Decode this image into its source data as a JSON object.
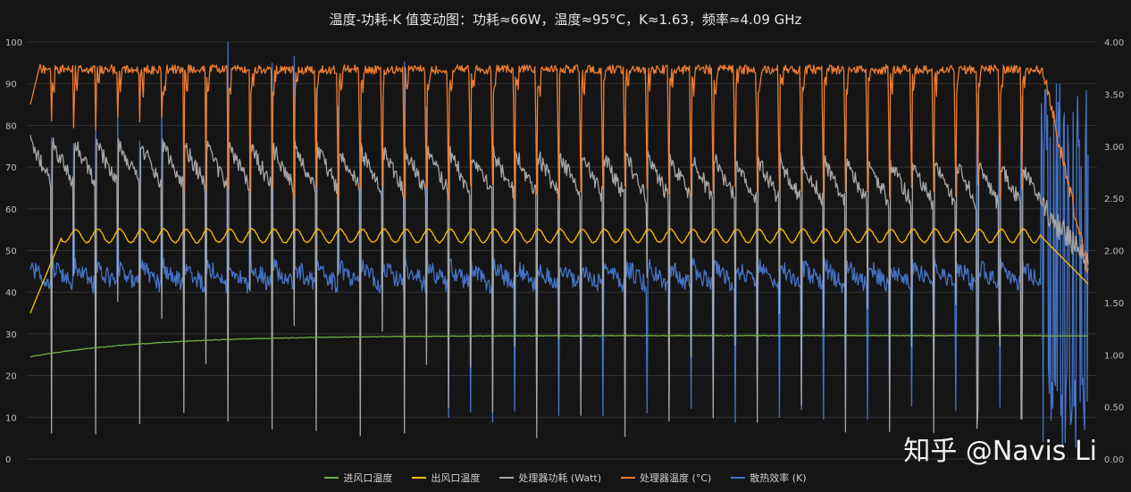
{
  "chart_data": {
    "type": "line",
    "title": "温度-功耗-K 值变动图：功耗≈66W，温度≈95°C，K≈1.63，频率≈4.09 GHz",
    "left_axis": {
      "ylim": [
        0,
        100
      ],
      "ticks": [
        "0",
        "10",
        "20",
        "30",
        "40",
        "50",
        "60",
        "70",
        "80",
        "90",
        "100"
      ]
    },
    "right_axis": {
      "ylim": [
        0,
        4
      ],
      "ticks": [
        "0.00",
        "0.50",
        "1.00",
        "1.50",
        "2.00",
        "2.50",
        "3.00",
        "3.50",
        "4.00"
      ]
    },
    "grid": true,
    "legend_position": "bottom",
    "x": {
      "start": 0,
      "end": 1000,
      "cycles": 48
    },
    "series": [
      {
        "name": "进风口温度",
        "color": "#70ad47",
        "axis": "left",
        "start": 24.5,
        "plateau": 29.6,
        "final": 29.5
      },
      {
        "name": "出风口温度",
        "color": "#ffc000",
        "axis": "left",
        "start": 35,
        "mean": 53.5,
        "ripple": 1.6,
        "final": 42
      },
      {
        "name": "处理器功耗 (Watt)",
        "color": "#a5a5a5",
        "axis": "left",
        "start": 80,
        "mean": 69,
        "dip_min": 5,
        "final": 55
      },
      {
        "name": "处理器温度 (°C)",
        "color": "#ed7d31",
        "axis": "left",
        "start": 85,
        "peak": 95.5,
        "dip_min": 62,
        "final": 45
      },
      {
        "name": "散热效率 (K)",
        "color": "#4472c4",
        "axis": "right",
        "mean": 1.7,
        "spike_max": 4.0,
        "dip_min": 0.35,
        "final": 0.8
      }
    ]
  },
  "watermark": {
    "text": "知乎 @Navis Li"
  }
}
